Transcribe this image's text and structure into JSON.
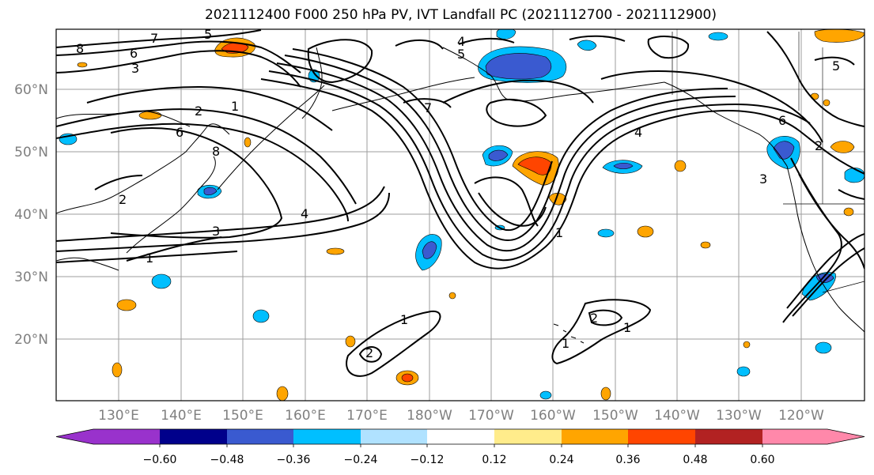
{
  "title": "2021112400 F000 250 hPa PV, IVT Landfall PC (2021112700 - 2021112900)",
  "lon_labels": [
    "130°E",
    "140°E",
    "150°E",
    "160°E",
    "170°E",
    "180°W",
    "170°W",
    "160°W",
    "150°W",
    "140°W",
    "130°W",
    "120°W"
  ],
  "lat_labels": [
    "60°N",
    "50°N",
    "40°N",
    "30°N",
    "20°N"
  ],
  "colorbar": {
    "ticks": [
      "−0.60",
      "−0.48",
      "−0.36",
      "−0.24",
      "−0.12",
      "0.12",
      "0.24",
      "0.36",
      "0.48",
      "0.60"
    ],
    "colors": [
      "#9932cc",
      "#00008b",
      "#3a5ad0",
      "#00bfff",
      "#b0e2ff",
      "#ffffff",
      "#ffec8b",
      "#ffa500",
      "#ff4500",
      "#b22222",
      "#ff88aa"
    ]
  },
  "contour_labels": [
    "8",
    "7",
    "6",
    "5",
    "3",
    "2",
    "1",
    "4",
    "8",
    "6",
    "5",
    "4",
    "3",
    "2",
    "1",
    "7",
    "6",
    "5",
    "4",
    "3",
    "2",
    "1",
    "1",
    "2",
    "1",
    "2",
    "1"
  ],
  "colors": {
    "grid": "#9e9e9e",
    "axis_text": "#7f7f7f",
    "contour": "#000000"
  }
}
